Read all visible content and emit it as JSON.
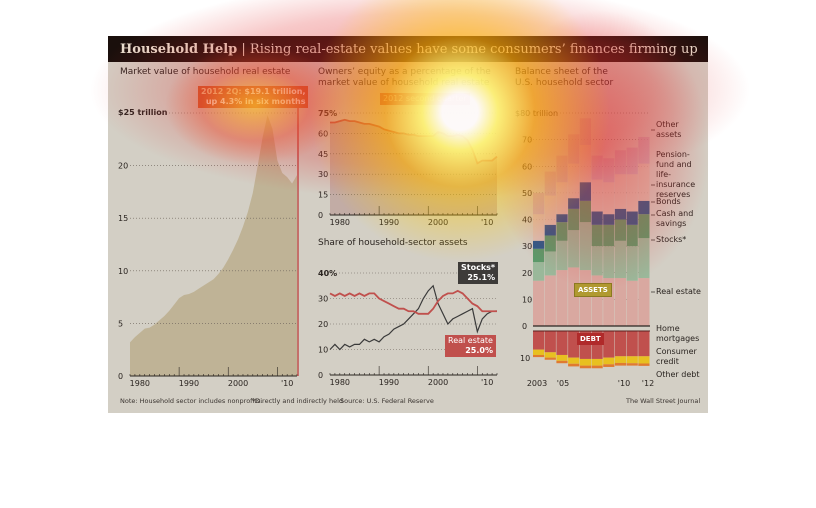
{
  "header": {
    "title_bold": "Household Help",
    "title_rest": " | Rising real-estate values have some consumers’ finances firming up"
  },
  "colors": {
    "bg": "#d3cfc5",
    "area": "#bfb396",
    "red": "#c0504d",
    "stocks_line": "#3a3a3a",
    "re_pink": "#d9a8a0",
    "green_stocks": "#9ab89a",
    "green_cash": "#5a9a6a",
    "bonds": "#2a5a8a",
    "pension": "#dcc0b0",
    "other": "#c8a8b8",
    "mortgage": "#c0504d",
    "consumer": "#e8c020",
    "otherdebt": "#e07a30"
  },
  "chart_data": [
    {
      "type": "area",
      "title": "Market value of household real estate",
      "ylabel": "$25 trillion",
      "ylim": [
        0,
        25
      ],
      "yticks": [
        "25",
        "20",
        "15",
        "10",
        "5",
        "0"
      ],
      "xticks": [
        "1980",
        "1990",
        "2000",
        "'10"
      ],
      "x_start": 1978,
      "values": [
        3.2,
        3.7,
        4.1,
        4.5,
        4.6,
        4.9,
        5.3,
        5.7,
        6.2,
        6.8,
        7.4,
        7.7,
        7.8,
        8.0,
        8.3,
        8.6,
        8.9,
        9.2,
        9.7,
        10.3,
        11.1,
        12.0,
        13.0,
        14.2,
        15.6,
        17.4,
        20.0,
        22.7,
        24.8,
        23.5,
        20.5,
        19.3,
        18.9,
        18.3,
        19.1
      ],
      "annotation_period": "2012 2Q:",
      "annotation_value": "$19.1 trillion,",
      "annotation_change": "up 4.3% in six months",
      "y_unit_label": "trillion"
    },
    {
      "type": "line",
      "title_line1": "Owners’ equity as a percentage of the",
      "title_line2": "market value of household real estate",
      "ylim": [
        0,
        75
      ],
      "yticks": [
        "75%",
        "60",
        "45",
        "30",
        "15",
        "0"
      ],
      "xticks": [
        "1980",
        "1990",
        "2000",
        "'10"
      ],
      "x_start": 1978,
      "values": [
        68,
        68,
        69,
        70,
        69,
        69,
        68,
        67,
        67,
        66,
        65,
        63,
        62,
        61,
        60,
        60,
        59,
        59,
        58,
        58,
        58,
        58,
        61,
        60,
        58,
        58,
        59,
        58,
        55,
        48,
        38,
        40,
        40,
        40,
        43
      ],
      "annotation": "2012 second quarter"
    },
    {
      "type": "line",
      "title": "Share of household-sector assets",
      "ylim": [
        0,
        40
      ],
      "yticks": [
        "40%",
        "30",
        "20",
        "10",
        "0"
      ],
      "xticks": [
        "1980",
        "1990",
        "2000",
        "'10"
      ],
      "x_start": 1978,
      "series": [
        {
          "name": "Stocks*",
          "final": "25.1%",
          "values": [
            10,
            12,
            10,
            12,
            11,
            12,
            12,
            14,
            13,
            14,
            13,
            15,
            16,
            18,
            19,
            20,
            22,
            24,
            26,
            30,
            33,
            35,
            28,
            24,
            20,
            22,
            23,
            24,
            25,
            26,
            17,
            22,
            24,
            25,
            25.1
          ]
        },
        {
          "name": "Real estate",
          "final": "25.0%",
          "values": [
            32,
            31,
            32,
            31,
            32,
            31,
            32,
            31,
            32,
            32,
            30,
            29,
            28,
            27,
            26,
            26,
            25,
            25,
            24,
            24,
            24,
            26,
            29,
            31,
            32,
            32,
            33,
            32,
            30,
            28,
            27,
            25,
            25,
            25,
            25.0
          ]
        }
      ]
    },
    {
      "type": "bar",
      "title_line1": "Balance sheet of the",
      "title_line2": "U.S. household sector",
      "ylim": [
        -12,
        80
      ],
      "yticks": [
        "$80 trillion",
        "70",
        "60",
        "50",
        "40",
        "30",
        "20",
        "10",
        "0",
        "10"
      ],
      "xticks": [
        "2003",
        "'05",
        "'10",
        "'12"
      ],
      "categories": [
        2003,
        2004,
        2005,
        2006,
        2007,
        2008,
        2009,
        2010,
        2011,
        2012
      ],
      "assets_label": "ASSETS",
      "debt_label": "DEBT",
      "assets": [
        {
          "name": "Real estate",
          "values": [
            17,
            19,
            21,
            22,
            21,
            19,
            18,
            18,
            17,
            18
          ]
        },
        {
          "name": "Stocks*",
          "values": [
            7,
            9,
            11,
            14,
            18,
            11,
            12,
            14,
            13,
            15
          ]
        },
        {
          "name": "Cash and savings",
          "values": [
            5,
            6,
            7,
            8,
            8,
            8,
            8,
            8,
            8,
            9
          ]
        },
        {
          "name": "Bonds",
          "values": [
            3,
            4,
            3,
            4,
            7,
            5,
            4,
            4,
            5,
            5
          ]
        },
        {
          "name": "Pension-fund and life-insurance reserves",
          "values": [
            10,
            11,
            12,
            13,
            14,
            12,
            12,
            13,
            14,
            14
          ]
        },
        {
          "name": "Other assets",
          "values": [
            8,
            9,
            10,
            11,
            10,
            9,
            9,
            9,
            10,
            10
          ]
        }
      ],
      "debt": [
        {
          "name": "Home mortgages",
          "values": [
            7,
            8,
            9,
            10,
            10.5,
            10.5,
            10,
            9.5,
            9.5,
            9.5
          ]
        },
        {
          "name": "Consumer credit",
          "values": [
            2,
            2,
            2.2,
            2.3,
            2.5,
            2.5,
            2.5,
            2.5,
            2.6,
            2.7
          ]
        },
        {
          "name": "Other debt",
          "values": [
            0.8,
            0.8,
            0.9,
            1,
            1,
            1,
            1,
            1,
            0.9,
            0.9
          ]
        }
      ],
      "legend_labels": {
        "other": "Other assets",
        "pension": "Pension-fund and life-insurance reserves",
        "bonds": "Bonds",
        "cash": "Cash and savings",
        "stocks": "Stocks*",
        "realestate": "Real estate",
        "mortgages": "Home mortgages",
        "consumer": "Consumer credit",
        "otherdebt": "Other debt"
      }
    }
  ],
  "footer": {
    "note": "Note: Household sector includes nonprofits.",
    "footnote": "*Directly and indirectly held",
    "source": "Source: U.S. Federal Reserve",
    "credit": "The Wall Street Journal"
  }
}
